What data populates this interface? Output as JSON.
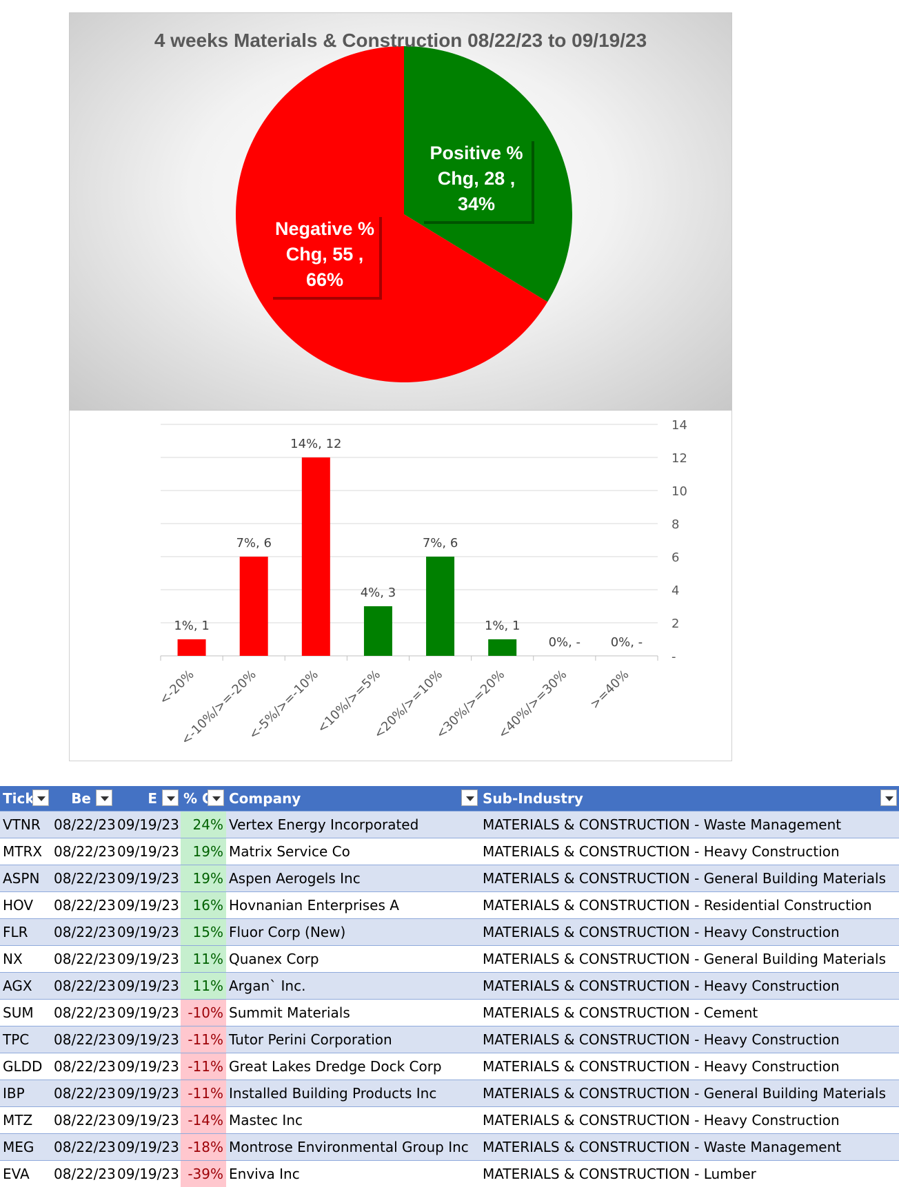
{
  "chart_data": [
    {
      "type": "pie",
      "title": "4 weeks Materials & Construction 08/22/23 to 09/19/23",
      "slices": [
        {
          "label": "Positive % Chg",
          "value": 28,
          "percent": "34%",
          "color": "#008000",
          "text": [
            "Positive %",
            "Chg,  28 ,",
            "34%"
          ]
        },
        {
          "label": "Negative % Chg",
          "value": 55,
          "percent": "66%",
          "color": "#ff0000",
          "text": [
            "Negative %",
            "Chg,  55 ,",
            "66%"
          ]
        }
      ]
    },
    {
      "type": "bar",
      "categories": [
        "<-20%",
        "<-10%/>=-20%",
        "<-5%/>=-10%",
        "<10%/>=5%",
        "<20%/>=10%",
        "<30%/>=20%",
        "<40%/>=30%",
        ">=40%"
      ],
      "values": [
        1,
        6,
        12,
        3,
        6,
        1,
        0,
        0
      ],
      "data_labels": [
        "1%,  1",
        "7%,  6",
        "14%,  12",
        "4%,  3",
        "7%,  6",
        "1%,  1",
        "0%,  -",
        "0%,  -"
      ],
      "colors": [
        "#ff0000",
        "#ff0000",
        "#ff0000",
        "#008000",
        "#008000",
        "#008000",
        "#008000",
        "#008000"
      ],
      "ylim": [
        0,
        14
      ],
      "yticks": [
        0,
        2,
        4,
        6,
        8,
        10,
        12,
        14
      ],
      "ytick_labels": [
        "-",
        "2",
        "4",
        "6",
        "8",
        "10",
        "12",
        "14"
      ],
      "y_axis_side": "right",
      "grid": true
    }
  ],
  "table": {
    "headers": [
      "Tick",
      "Be",
      "E",
      "% C",
      "Company",
      "Sub-Industry"
    ],
    "rows": [
      {
        "ticker": "VTNR",
        "begin": "08/22/23",
        "end": "09/19/23",
        "chg": "24%",
        "dir": "pos",
        "company": "Vertex Energy Incorporated",
        "sub": "MATERIALS & CONSTRUCTION - Waste Management"
      },
      {
        "ticker": "MTRX",
        "begin": "08/22/23",
        "end": "09/19/23",
        "chg": "19%",
        "dir": "pos",
        "company": "Matrix Service Co",
        "sub": "MATERIALS & CONSTRUCTION - Heavy Construction"
      },
      {
        "ticker": "ASPN",
        "begin": "08/22/23",
        "end": "09/19/23",
        "chg": "19%",
        "dir": "pos",
        "company": "Aspen Aerogels Inc",
        "sub": "MATERIALS & CONSTRUCTION - General Building Materials"
      },
      {
        "ticker": "HOV",
        "begin": "08/22/23",
        "end": "09/19/23",
        "chg": "16%",
        "dir": "pos",
        "company": "Hovnanian Enterprises A",
        "sub": "MATERIALS & CONSTRUCTION - Residential Construction"
      },
      {
        "ticker": "FLR",
        "begin": "08/22/23",
        "end": "09/19/23",
        "chg": "15%",
        "dir": "pos",
        "company": "Fluor Corp (New)",
        "sub": "MATERIALS & CONSTRUCTION - Heavy Construction"
      },
      {
        "ticker": "NX",
        "begin": "08/22/23",
        "end": "09/19/23",
        "chg": "11%",
        "dir": "pos",
        "company": "Quanex Corp",
        "sub": "MATERIALS & CONSTRUCTION - General Building Materials"
      },
      {
        "ticker": "AGX",
        "begin": "08/22/23",
        "end": "09/19/23",
        "chg": "11%",
        "dir": "pos",
        "company": "Argan` Inc.",
        "sub": "MATERIALS & CONSTRUCTION - Heavy Construction"
      },
      {
        "ticker": "SUM",
        "begin": "08/22/23",
        "end": "09/19/23",
        "chg": "-10%",
        "dir": "neg",
        "company": "Summit Materials",
        "sub": "MATERIALS & CONSTRUCTION - Cement"
      },
      {
        "ticker": "TPC",
        "begin": "08/22/23",
        "end": "09/19/23",
        "chg": "-11%",
        "dir": "neg",
        "company": "Tutor Perini Corporation",
        "sub": "MATERIALS & CONSTRUCTION - Heavy Construction"
      },
      {
        "ticker": "GLDD",
        "begin": "08/22/23",
        "end": "09/19/23",
        "chg": "-11%",
        "dir": "neg",
        "company": "Great Lakes Dredge Dock Corp",
        "sub": "MATERIALS & CONSTRUCTION - Heavy Construction"
      },
      {
        "ticker": "IBP",
        "begin": "08/22/23",
        "end": "09/19/23",
        "chg": "-11%",
        "dir": "neg",
        "company": "Installed Building Products Inc",
        "sub": "MATERIALS & CONSTRUCTION - General Building Materials"
      },
      {
        "ticker": "MTZ",
        "begin": "08/22/23",
        "end": "09/19/23",
        "chg": "-14%",
        "dir": "neg",
        "company": "Mastec Inc",
        "sub": "MATERIALS & CONSTRUCTION - Heavy Construction"
      },
      {
        "ticker": "MEG",
        "begin": "08/22/23",
        "end": "09/19/23",
        "chg": "-18%",
        "dir": "neg",
        "company": "Montrose Environmental Group Inc",
        "sub": "MATERIALS & CONSTRUCTION - Waste Management"
      },
      {
        "ticker": "EVA",
        "begin": "08/22/23",
        "end": "09/19/23",
        "chg": "-39%",
        "dir": "neg",
        "company": "Enviva Inc",
        "sub": "MATERIALS & CONSTRUCTION - Lumber"
      }
    ]
  }
}
